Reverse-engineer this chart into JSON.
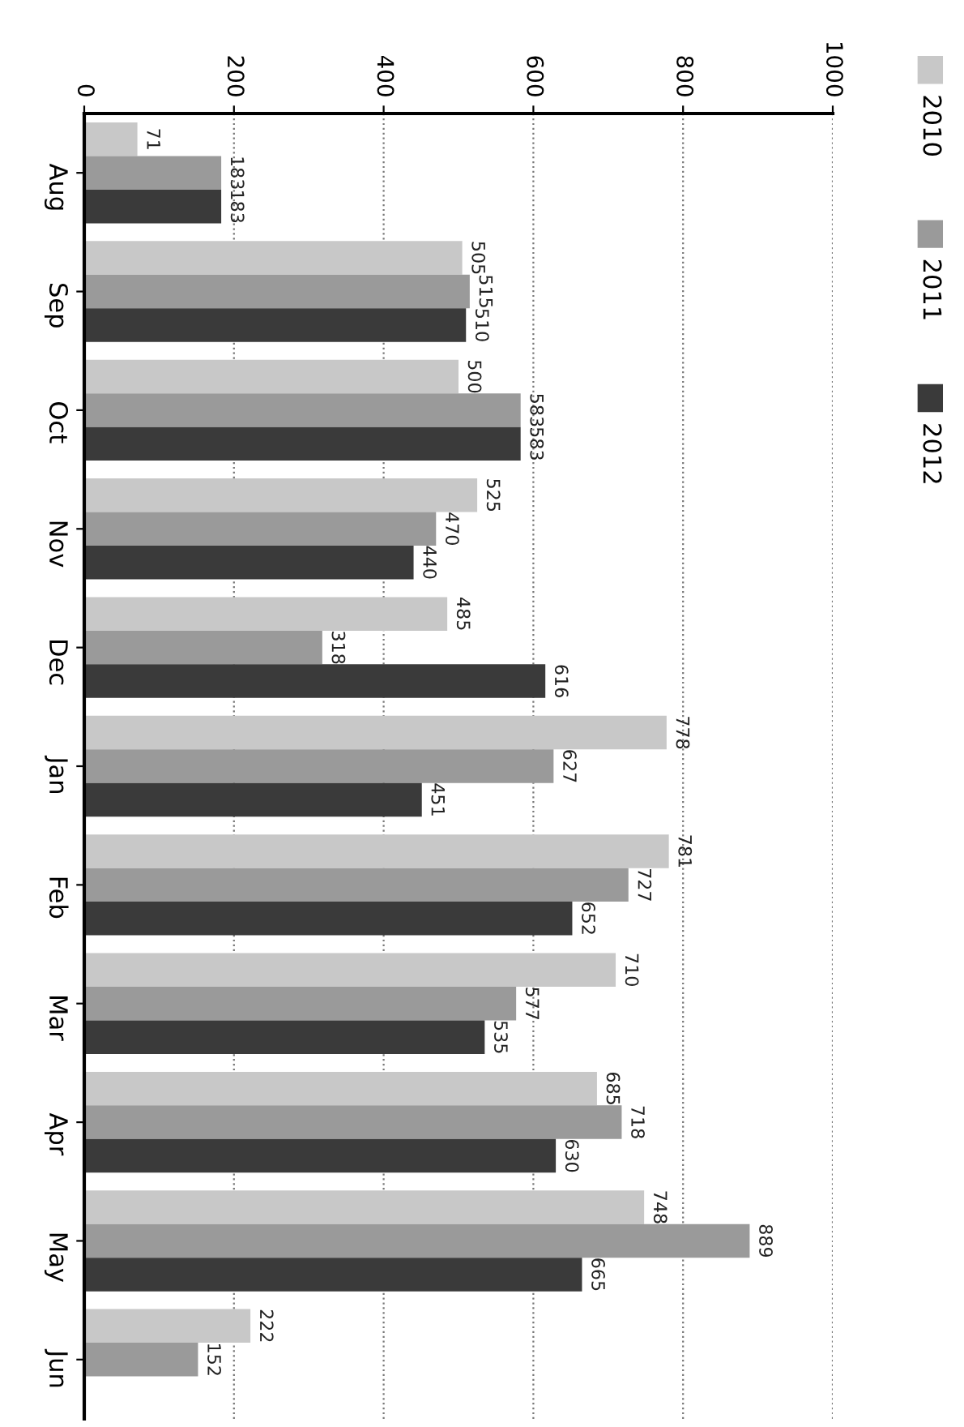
{
  "chart_data": {
    "type": "bar",
    "orientation": "horizontal",
    "categories": [
      "Aug",
      "Sep",
      "Oct",
      "Nov",
      "Dec",
      "Jan",
      "Feb",
      "Mar",
      "Apr",
      "May",
      "Jun"
    ],
    "series": [
      {
        "name": "2010",
        "color": "#c8c8c8",
        "values": [
          71,
          505,
          500,
          525,
          485,
          778,
          781,
          710,
          685,
          748,
          222
        ]
      },
      {
        "name": "2011",
        "color": "#9a9a9a",
        "values": [
          183,
          515,
          583,
          470,
          318,
          627,
          727,
          577,
          718,
          889,
          152
        ]
      },
      {
        "name": "2012",
        "color": "#3a3a3a",
        "values": [
          183,
          510,
          583,
          440,
          616,
          451,
          652,
          535,
          630,
          665,
          null
        ]
      }
    ],
    "xlim": [
      0,
      1000
    ],
    "xticks": [
      0,
      200,
      400,
      600,
      800,
      1000
    ],
    "grid": "x",
    "legend": "right",
    "data_labels": true
  }
}
